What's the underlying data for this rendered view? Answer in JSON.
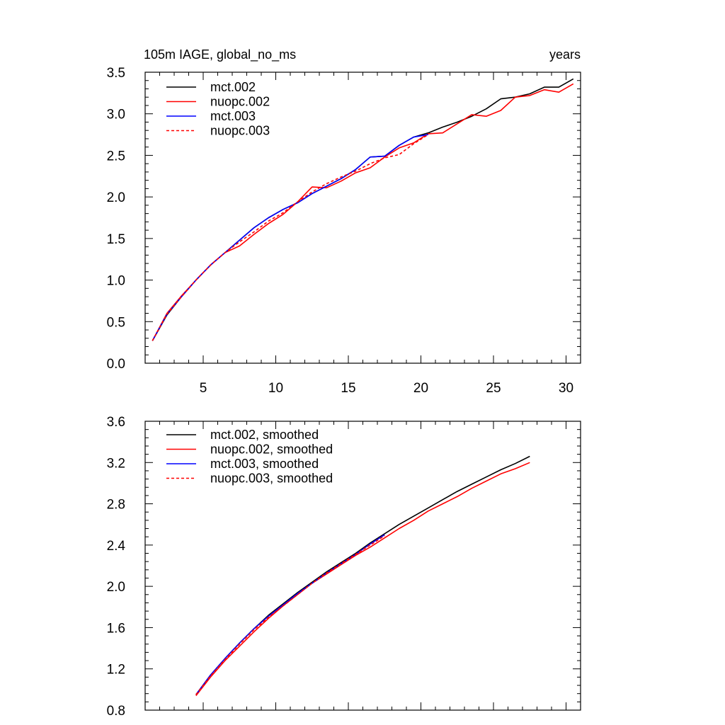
{
  "chart_data": [
    {
      "type": "line",
      "title_left": "105m IAGE, global_no_ms",
      "title_right": "years",
      "xlim": [
        1,
        31
      ],
      "ylim": [
        0.0,
        3.5
      ],
      "x_ticks": [
        5,
        10,
        15,
        20,
        25,
        30
      ],
      "x_tick_labels": [
        "5",
        "10",
        "15",
        "20",
        "25",
        "30"
      ],
      "y_ticks": [
        0.0,
        0.5,
        1.0,
        1.5,
        2.0,
        2.5,
        3.0,
        3.5
      ],
      "y_tick_labels": [
        "0.0",
        "0.5",
        "1.0",
        "1.5",
        "2.0",
        "2.5",
        "3.0",
        "3.5"
      ],
      "legend_position": "top-left",
      "series": [
        {
          "name": "mct.002",
          "color": "#000000",
          "dash": "solid",
          "x": [
            1.5,
            2.5,
            3.5,
            4.5,
            5.5,
            6.5,
            7.5,
            8.5,
            9.5,
            10.5,
            11.5,
            12.5,
            13.5,
            14.5,
            15.5,
            16.5,
            17.5,
            18.5,
            19.5,
            20.5,
            21.5,
            22.5,
            23.5,
            24.5,
            25.5,
            26.5,
            27.5,
            28.5,
            29.5,
            30.5
          ],
          "y": [
            0.27,
            0.58,
            0.8,
            1.0,
            1.18,
            1.33,
            1.48,
            1.63,
            1.75,
            1.85,
            1.93,
            2.04,
            2.13,
            2.22,
            2.33,
            2.48,
            2.49,
            2.62,
            2.72,
            2.77,
            2.84,
            2.9,
            2.97,
            3.06,
            3.18,
            3.2,
            3.24,
            3.32,
            3.32,
            3.42
          ]
        },
        {
          "name": "nuopc.002",
          "color": "#ff0000",
          "dash": "solid",
          "x": [
            1.5,
            2.5,
            3.5,
            4.5,
            5.5,
            6.5,
            7.5,
            8.5,
            9.5,
            10.5,
            11.5,
            12.5,
            13.5,
            14.5,
            15.5,
            16.5,
            17.5,
            18.5,
            19.5,
            20.5,
            21.5,
            22.5,
            23.5,
            24.5,
            25.5,
            26.5,
            27.5,
            28.5,
            29.5,
            30.5
          ],
          "y": [
            0.27,
            0.6,
            0.81,
            1.0,
            1.18,
            1.33,
            1.41,
            1.55,
            1.68,
            1.79,
            1.94,
            2.12,
            2.11,
            2.19,
            2.29,
            2.35,
            2.48,
            2.59,
            2.65,
            2.76,
            2.77,
            2.88,
            2.99,
            2.97,
            3.04,
            3.2,
            3.22,
            3.29,
            3.26,
            3.36
          ]
        },
        {
          "name": "mct.003",
          "color": "#0000ff",
          "dash": "solid",
          "x": [
            1.5,
            2.5,
            3.5,
            4.5,
            5.5,
            6.5,
            7.5,
            8.5,
            9.5,
            10.5,
            11.5,
            12.5,
            13.5,
            14.5,
            15.5,
            16.5,
            17.5,
            18.5,
            19.5,
            20.5
          ],
          "y": [
            0.27,
            0.59,
            0.8,
            1.0,
            1.18,
            1.33,
            1.48,
            1.63,
            1.75,
            1.85,
            1.93,
            2.04,
            2.13,
            2.22,
            2.33,
            2.48,
            2.49,
            2.62,
            2.72,
            2.75
          ]
        },
        {
          "name": "nuopc.003",
          "color": "#ff0000",
          "dash": "dashed",
          "x": [
            1.5,
            2.5,
            3.5,
            4.5,
            5.5,
            6.5,
            7.5,
            8.5,
            9.5,
            10.5,
            11.5,
            12.5,
            13.5,
            14.5,
            15.5,
            16.5,
            17.5,
            18.5,
            19.5,
            20.5
          ],
          "y": [
            0.27,
            0.59,
            0.8,
            1.0,
            1.18,
            1.33,
            1.46,
            1.58,
            1.71,
            1.81,
            1.94,
            2.06,
            2.16,
            2.24,
            2.31,
            2.4,
            2.47,
            2.51,
            2.64,
            2.75
          ]
        }
      ]
    },
    {
      "type": "line",
      "xlim": [
        1,
        31
      ],
      "ylim": [
        0.8,
        3.6
      ],
      "x_ticks": [
        5,
        10,
        15,
        20,
        25,
        30
      ],
      "y_ticks": [
        0.8,
        1.2,
        1.6,
        2.0,
        2.4,
        2.8,
        3.2,
        3.6
      ],
      "y_tick_labels": [
        "0.8",
        "1.2",
        "1.6",
        "2.0",
        "2.4",
        "2.8",
        "3.2",
        "3.6"
      ],
      "legend_position": "top-left",
      "series": [
        {
          "name": "mct.002, smoothed",
          "color": "#000000",
          "dash": "solid",
          "x": [
            4.5,
            5.5,
            6.5,
            7.5,
            8.5,
            9.5,
            10.5,
            11.5,
            12.5,
            13.5,
            14.5,
            15.5,
            16.5,
            17.5,
            18.5,
            19.5,
            20.5,
            21.5,
            22.5,
            23.5,
            24.5,
            25.5,
            26.5,
            27.5
          ],
          "y": [
            0.95,
            1.14,
            1.3,
            1.45,
            1.59,
            1.72,
            1.83,
            1.94,
            2.04,
            2.14,
            2.23,
            2.32,
            2.42,
            2.51,
            2.6,
            2.68,
            2.76,
            2.84,
            2.92,
            2.99,
            3.06,
            3.13,
            3.19,
            3.26
          ]
        },
        {
          "name": "nuopc.002, smoothed",
          "color": "#ff0000",
          "dash": "solid",
          "x": [
            4.5,
            5.5,
            6.5,
            7.5,
            8.5,
            9.5,
            10.5,
            11.5,
            12.5,
            13.5,
            14.5,
            15.5,
            16.5,
            17.5,
            18.5,
            19.5,
            20.5,
            21.5,
            22.5,
            23.5,
            24.5,
            25.5,
            26.5,
            27.5
          ],
          "y": [
            0.94,
            1.12,
            1.28,
            1.42,
            1.56,
            1.69,
            1.81,
            1.92,
            2.03,
            2.12,
            2.21,
            2.3,
            2.38,
            2.47,
            2.56,
            2.64,
            2.73,
            2.8,
            2.87,
            2.95,
            3.02,
            3.09,
            3.14,
            3.2
          ]
        },
        {
          "name": "mct.003, smoothed",
          "color": "#0000ff",
          "dash": "solid",
          "x": [
            4.5,
            5.5,
            6.5,
            7.5,
            8.5,
            9.5,
            10.5,
            11.5,
            12.5,
            13.5,
            14.5,
            15.5,
            16.5,
            17.5
          ],
          "y": [
            0.95,
            1.14,
            1.3,
            1.45,
            1.59,
            1.71,
            1.82,
            1.93,
            2.03,
            2.13,
            2.22,
            2.31,
            2.41,
            2.5
          ]
        },
        {
          "name": "nuopc.003, smoothed",
          "color": "#ff0000",
          "dash": "dashed",
          "x": [
            4.5,
            5.5,
            6.5,
            7.5,
            8.5,
            9.5,
            10.5,
            11.5,
            12.5,
            13.5,
            14.5,
            15.5,
            16.5,
            17.5
          ],
          "y": [
            0.95,
            1.13,
            1.29,
            1.44,
            1.58,
            1.7,
            1.81,
            1.92,
            2.03,
            2.13,
            2.22,
            2.31,
            2.4,
            2.49
          ]
        }
      ]
    }
  ]
}
